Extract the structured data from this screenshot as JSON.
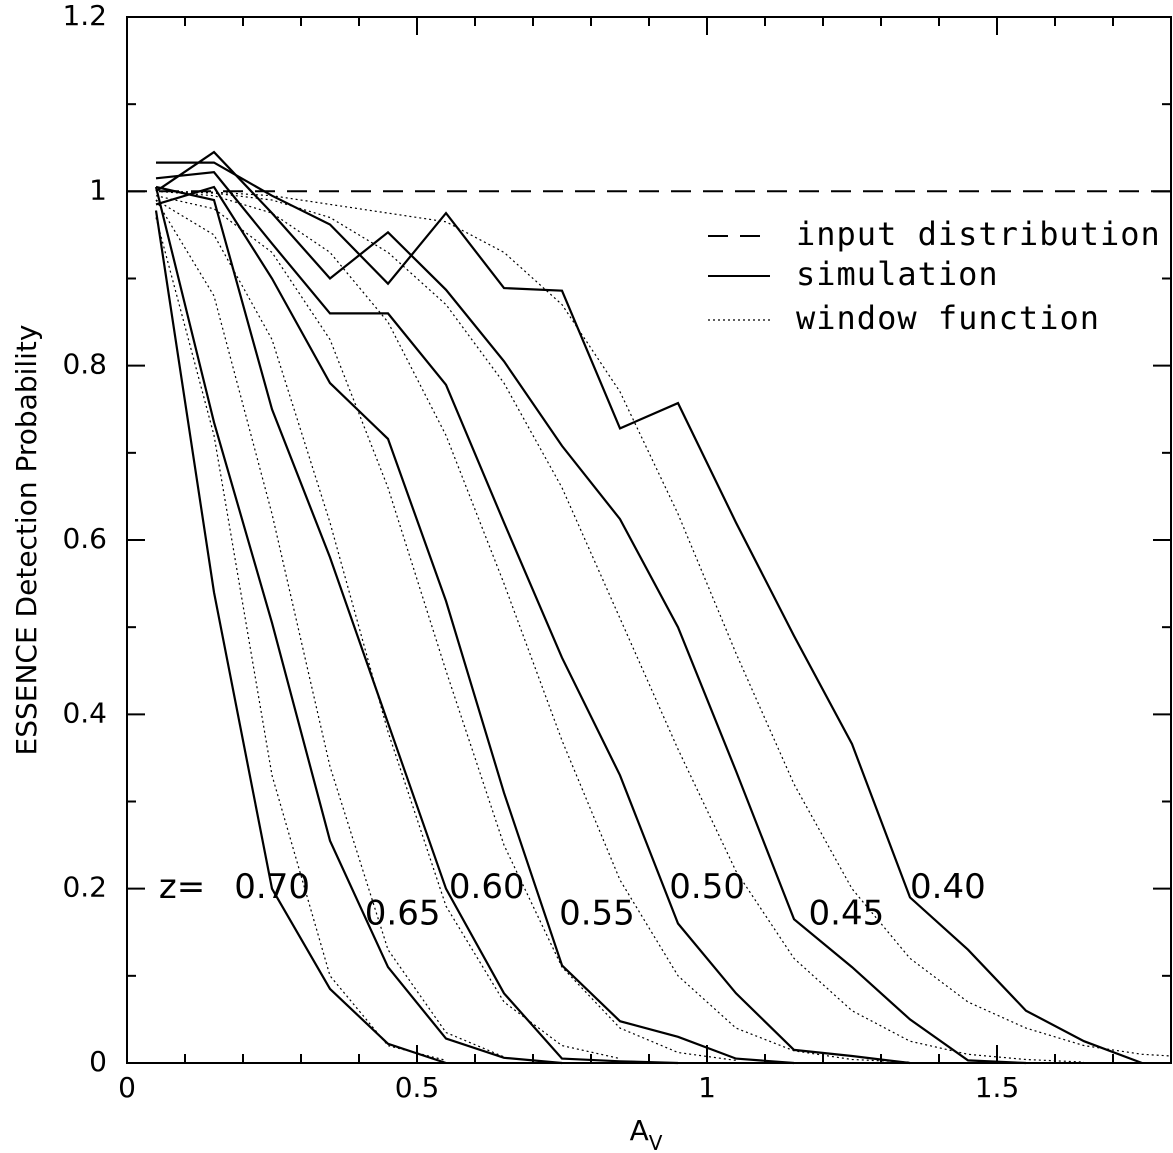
{
  "chart_data": {
    "type": "line",
    "xlabel": "A",
    "xlabel_sub": "V",
    "ylabel": "ESSENCE Detection Probability",
    "xlim": [
      0,
      1.8
    ],
    "ylim": [
      0,
      1.2
    ],
    "xticks": [
      0,
      0.5,
      1,
      1.5
    ],
    "xtick_labels": [
      "0",
      "0.5",
      "1",
      "1.5"
    ],
    "yticks": [
      0,
      0.2,
      0.4,
      0.6,
      0.8,
      1,
      1.2
    ],
    "ytick_labels": [
      "0",
      "0.2",
      "0.4",
      "0.6",
      "0.8",
      "1",
      "1.2"
    ],
    "grid": false,
    "legend_position": "top-right",
    "legend": [
      {
        "label": "input distribution",
        "style": "dashed"
      },
      {
        "label": "simulation",
        "style": "solid"
      },
      {
        "label": "window function",
        "style": "dotted"
      }
    ],
    "z_prefix": "z=",
    "input_distribution": {
      "x": [
        0,
        1.8
      ],
      "y": [
        1.0,
        1.0
      ]
    },
    "series": [
      {
        "label": "0.40",
        "simulation": {
          "x": [
            0.05,
            0.15,
            0.25,
            0.35,
            0.45,
            0.55,
            0.65,
            0.75,
            0.85,
            0.95,
            1.05,
            1.15,
            1.25,
            1.35,
            1.45,
            1.55,
            1.65,
            1.75
          ],
          "y": [
            1.033,
            1.033,
            0.995,
            0.962,
            0.894,
            0.975,
            0.889,
            0.886,
            0.728,
            0.757,
            0.62,
            0.49,
            0.366,
            0.19,
            0.13,
            0.06,
            0.025,
            0.0
          ]
        },
        "window": {
          "x": [
            0.05,
            0.15,
            0.25,
            0.35,
            0.45,
            0.55,
            0.65,
            0.75,
            0.85,
            0.95,
            1.05,
            1.15,
            1.25,
            1.35,
            1.45,
            1.55,
            1.65,
            1.75,
            1.8
          ],
          "y": [
            1.0,
            0.999,
            0.995,
            0.985,
            0.975,
            0.965,
            0.93,
            0.87,
            0.77,
            0.63,
            0.47,
            0.32,
            0.2,
            0.12,
            0.07,
            0.04,
            0.02,
            0.01,
            0.008
          ]
        }
      },
      {
        "label": "0.45",
        "simulation": {
          "x": [
            0.05,
            0.15,
            0.25,
            0.35,
            0.45,
            0.55,
            0.65,
            0.75,
            0.85,
            0.95,
            1.05,
            1.15,
            1.25,
            1.35,
            1.45,
            1.55
          ],
          "y": [
            1.0,
            1.045,
            0.975,
            0.9,
            0.953,
            0.887,
            0.805,
            0.708,
            0.624,
            0.5,
            0.335,
            0.165,
            0.11,
            0.05,
            0.003,
            0.0
          ]
        },
        "window": {
          "x": [
            0.05,
            0.15,
            0.25,
            0.35,
            0.45,
            0.55,
            0.65,
            0.75,
            0.85,
            0.95,
            1.05,
            1.15,
            1.25,
            1.35,
            1.45,
            1.55,
            1.65
          ],
          "y": [
            1.0,
            0.998,
            0.99,
            0.97,
            0.93,
            0.87,
            0.78,
            0.66,
            0.51,
            0.36,
            0.22,
            0.12,
            0.06,
            0.025,
            0.01,
            0.004,
            0.001
          ]
        }
      },
      {
        "label": "0.50",
        "simulation": {
          "x": [
            0.05,
            0.15,
            0.25,
            0.35,
            0.45,
            0.55,
            0.65,
            0.75,
            0.85,
            0.95,
            1.05,
            1.15,
            1.25,
            1.35
          ],
          "y": [
            1.015,
            1.022,
            0.94,
            0.86,
            0.86,
            0.778,
            0.62,
            0.465,
            0.33,
            0.16,
            0.08,
            0.015,
            0.008,
            0.0
          ]
        },
        "window": {
          "x": [
            0.05,
            0.15,
            0.25,
            0.35,
            0.45,
            0.55,
            0.65,
            0.75,
            0.85,
            0.95,
            1.05,
            1.15,
            1.25,
            1.35
          ],
          "y": [
            1.0,
            0.995,
            0.975,
            0.93,
            0.85,
            0.72,
            0.55,
            0.37,
            0.21,
            0.1,
            0.04,
            0.014,
            0.004,
            0.001
          ]
        }
      },
      {
        "label": "0.55",
        "simulation": {
          "x": [
            0.05,
            0.15,
            0.25,
            0.35,
            0.45,
            0.55,
            0.65,
            0.75,
            0.85,
            0.95,
            1.05,
            1.15
          ],
          "y": [
            0.985,
            1.005,
            0.9,
            0.78,
            0.716,
            0.53,
            0.31,
            0.112,
            0.048,
            0.03,
            0.005,
            0.0
          ]
        },
        "window": {
          "x": [
            0.05,
            0.15,
            0.25,
            0.35,
            0.45,
            0.55,
            0.65,
            0.75,
            0.85,
            0.95,
            1.05
          ],
          "y": [
            0.995,
            0.98,
            0.93,
            0.83,
            0.66,
            0.45,
            0.25,
            0.11,
            0.04,
            0.012,
            0.003
          ]
        }
      },
      {
        "label": "0.60",
        "simulation": {
          "x": [
            0.05,
            0.15,
            0.25,
            0.35,
            0.45,
            0.55,
            0.65,
            0.75,
            0.85,
            0.95
          ],
          "y": [
            1.005,
            0.99,
            0.75,
            0.58,
            0.39,
            0.2,
            0.08,
            0.005,
            0.002,
            0.0
          ]
        },
        "window": {
          "x": [
            0.05,
            0.15,
            0.25,
            0.35,
            0.45,
            0.55,
            0.65,
            0.75,
            0.85
          ],
          "y": [
            0.99,
            0.95,
            0.83,
            0.62,
            0.38,
            0.18,
            0.07,
            0.02,
            0.005
          ]
        }
      },
      {
        "label": "0.65",
        "simulation": {
          "x": [
            0.05,
            0.15,
            0.25,
            0.35,
            0.45,
            0.55,
            0.65,
            0.75
          ],
          "y": [
            1.005,
            0.735,
            0.505,
            0.255,
            0.11,
            0.028,
            0.006,
            0.0
          ]
        },
        "window": {
          "x": [
            0.05,
            0.15,
            0.25,
            0.35,
            0.45,
            0.55,
            0.65
          ],
          "y": [
            0.99,
            0.88,
            0.63,
            0.34,
            0.13,
            0.035,
            0.007
          ]
        }
      },
      {
        "label": "0.70",
        "simulation": {
          "x": [
            0.05,
            0.15,
            0.25,
            0.35,
            0.45,
            0.55
          ],
          "y": [
            0.978,
            0.54,
            0.2,
            0.085,
            0.022,
            0.0
          ]
        },
        "window": {
          "x": [
            0.05,
            0.15,
            0.25,
            0.35,
            0.45,
            0.55
          ],
          "y": [
            0.97,
            0.72,
            0.33,
            0.1,
            0.02,
            0.003
          ]
        }
      }
    ],
    "annotations": [
      {
        "text": "z=",
        "x": 0.055,
        "y": 0.2
      },
      {
        "text": "0.70",
        "x": 0.185,
        "y": 0.2
      },
      {
        "text": "0.65",
        "x": 0.41,
        "y": 0.17
      },
      {
        "text": "0.60",
        "x": 0.555,
        "y": 0.2
      },
      {
        "text": "0.55",
        "x": 0.745,
        "y": 0.17
      },
      {
        "text": "0.50",
        "x": 0.935,
        "y": 0.2
      },
      {
        "text": "0.45",
        "x": 1.175,
        "y": 0.17
      },
      {
        "text": "0.40",
        "x": 1.35,
        "y": 0.2
      }
    ]
  }
}
